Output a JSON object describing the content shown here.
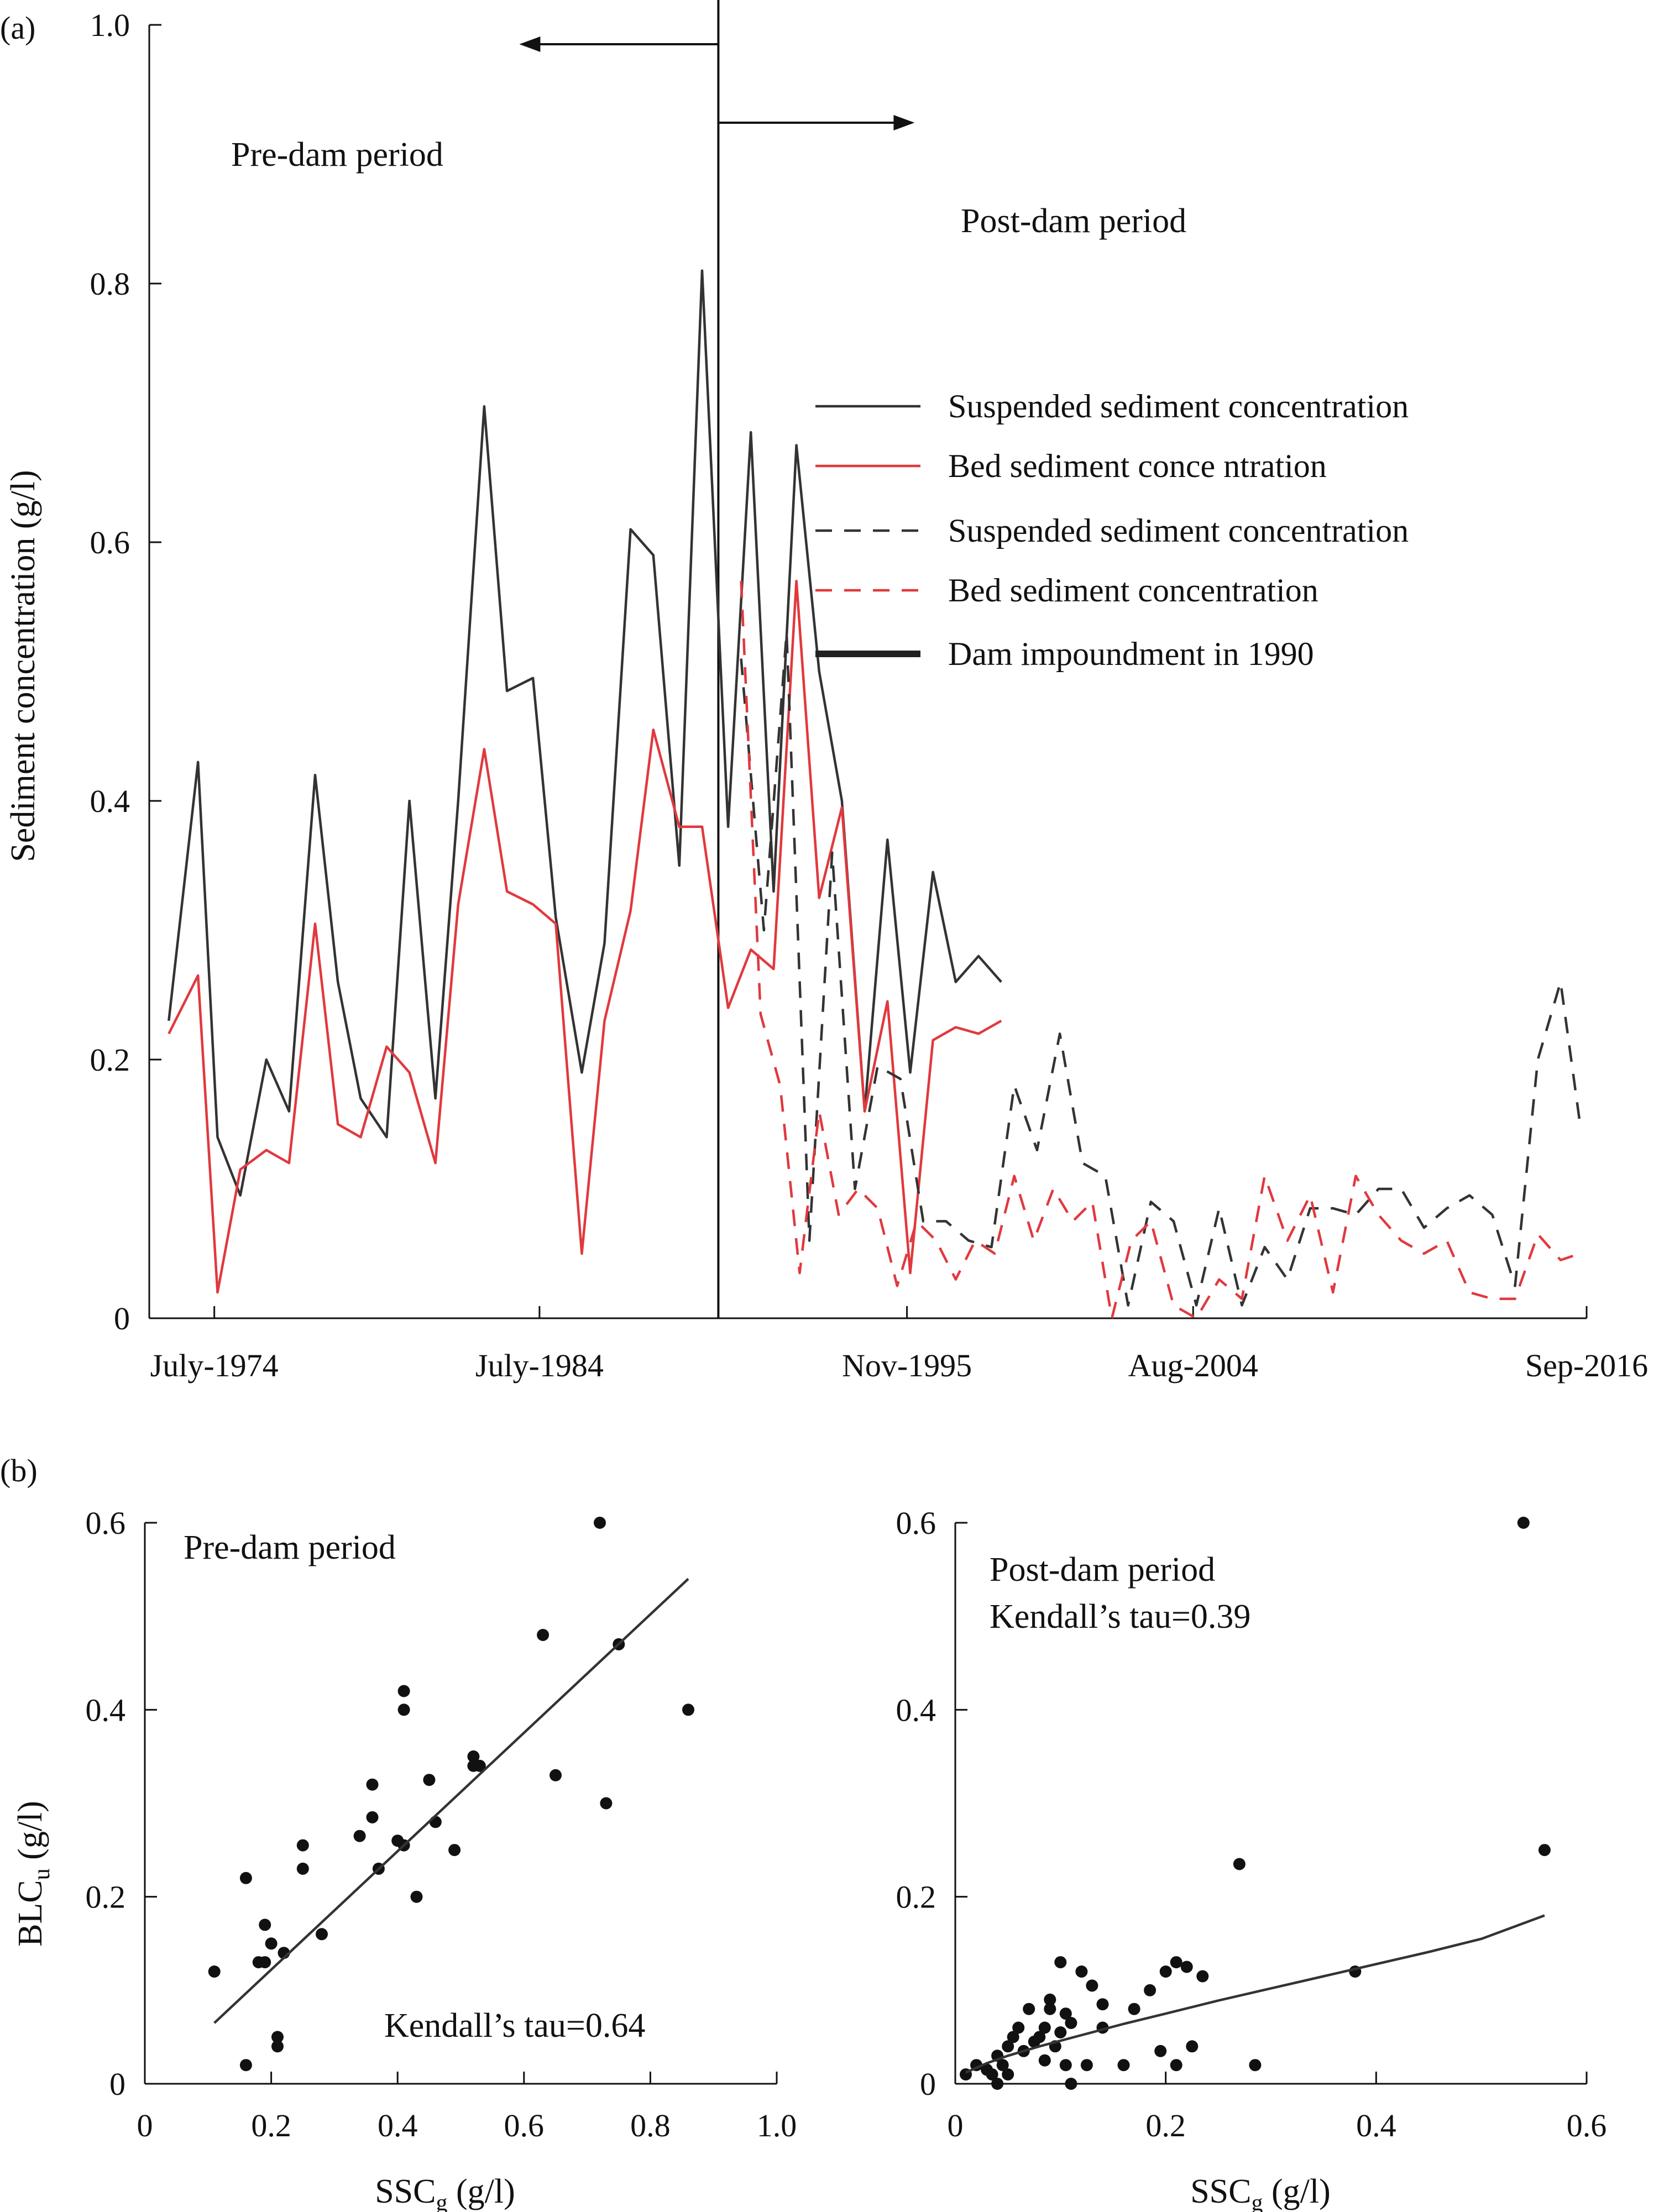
{
  "panel_labels": {
    "a": "(a)",
    "b": "(b)"
  },
  "chart_data": [
    {
      "type": "line",
      "panel": "(a)",
      "ylabel": "Sediment concentration (g/l)",
      "xlabel": "",
      "ylim": [
        0,
        1.0
      ],
      "yticks": [
        "0",
        "0.2",
        "0.4",
        "0.6",
        "0.8",
        "1.0"
      ],
      "xticks": [
        "July-1974",
        "July-1984",
        "Nov-1995",
        "Aug-2004",
        "Sep-2016"
      ],
      "x_unit": "decimal year",
      "xlim": [
        1972.5,
        2016.7
      ],
      "xtick_years": [
        1974.5,
        1984.5,
        1995.8,
        2004.6,
        2016.7
      ],
      "dam_year": 1990,
      "annotations": {
        "pre": "Pre-dam period",
        "post": "Post-dam period"
      },
      "legend_position": "right",
      "legend": [
        {
          "label": "Suspended sediment concentration",
          "style": "solid",
          "color": "#333333"
        },
        {
          "label": "Bed sediment conce ntration",
          "style": "solid",
          "color": "#e0393e"
        },
        {
          "label": "Suspended sediment concentration",
          "style": "dashed",
          "color": "#333333"
        },
        {
          "label": "Bed sediment concentration",
          "style": "dashed",
          "color": "#e0393e"
        },
        {
          "label": "Dam impoundment in 1990",
          "style": "thick",
          "color": "#222222"
        }
      ],
      "series": [
        {
          "style": "solid",
          "color": "#333333",
          "x": [
            1973.1,
            1974.0,
            1974.6,
            1975.3,
            1976.1,
            1976.8,
            1977.6,
            1978.3,
            1979.0,
            1979.8,
            1980.5,
            1981.3,
            1982.0,
            1982.8,
            1983.5,
            1984.3,
            1985.0,
            1985.8,
            1986.5,
            1987.3,
            1988.0,
            1988.8,
            1989.5,
            1990.3,
            1991.0,
            1991.7,
            1992.4,
            1993.1,
            1993.8,
            1994.5,
            1995.2,
            1995.9,
            1996.6,
            1997.3,
            1998.0,
            1998.7
          ],
          "y": [
            0.23,
            0.43,
            0.14,
            0.095,
            0.2,
            0.16,
            0.42,
            0.26,
            0.17,
            0.14,
            0.4,
            0.17,
            0.4,
            0.705,
            0.485,
            0.495,
            0.31,
            0.19,
            0.29,
            0.61,
            0.59,
            0.35,
            0.81,
            0.38,
            0.685,
            0.33,
            0.675,
            0.5,
            0.4,
            0.16,
            0.37,
            0.19,
            0.345,
            0.26,
            0.28,
            0.26
          ]
        },
        {
          "style": "solid",
          "color": "#e0393e",
          "x": [
            1973.1,
            1974.0,
            1974.6,
            1975.3,
            1976.1,
            1976.8,
            1977.6,
            1978.3,
            1979.0,
            1979.8,
            1980.5,
            1981.3,
            1982.0,
            1982.8,
            1983.5,
            1984.3,
            1985.0,
            1985.8,
            1986.5,
            1987.3,
            1988.0,
            1988.8,
            1989.5,
            1990.3,
            1991.0,
            1991.7,
            1992.4,
            1993.1,
            1993.8,
            1994.5,
            1995.2,
            1995.9,
            1996.6,
            1997.3,
            1998.0,
            1998.7
          ],
          "y": [
            0.22,
            0.265,
            0.02,
            0.115,
            0.13,
            0.12,
            0.305,
            0.15,
            0.14,
            0.21,
            0.19,
            0.12,
            0.32,
            0.44,
            0.33,
            0.32,
            0.305,
            0.05,
            0.23,
            0.315,
            0.455,
            0.38,
            0.38,
            0.24,
            0.285,
            0.27,
            0.57,
            0.325,
            0.395,
            0.16,
            0.245,
            0.035,
            0.215,
            0.225,
            0.22,
            0.23
          ]
        },
        {
          "style": "dashed",
          "color": "#333333",
          "x": [
            1990.7,
            1991.4,
            1992.1,
            1992.8,
            1993.5,
            1994.2,
            1994.9,
            1995.6,
            1996.3,
            1997.0,
            1997.7,
            1998.4,
            1999.1,
            1999.8,
            2000.5,
            2001.2,
            2001.9,
            2002.6,
            2003.3,
            2004.0,
            2004.7,
            2005.4,
            2006.1,
            2006.8,
            2007.5,
            2008.2,
            2008.9,
            2009.6,
            2010.3,
            2011.0,
            2011.7,
            2012.4,
            2013.1,
            2013.8,
            2014.5,
            2015.2,
            2015.9,
            2016.5
          ],
          "y": [
            0.51,
            0.3,
            0.53,
            0.06,
            0.36,
            0.1,
            0.195,
            0.185,
            0.075,
            0.075,
            0.06,
            0.055,
            0.18,
            0.13,
            0.22,
            0.12,
            0.11,
            0.01,
            0.09,
            0.075,
            0.01,
            0.085,
            0.01,
            0.055,
            0.03,
            0.085,
            0.085,
            0.08,
            0.1,
            0.1,
            0.07,
            0.085,
            0.095,
            0.08,
            0.025,
            0.2,
            0.26,
            0.15
          ]
        },
        {
          "style": "dashed",
          "color": "#e0393e",
          "x": [
            1990.7,
            1991.3,
            1991.9,
            1992.5,
            1993.1,
            1993.7,
            1994.3,
            1994.9,
            1995.5,
            1996.1,
            1996.7,
            1997.3,
            1997.9,
            1998.5,
            1999.1,
            1999.7,
            2000.3,
            2000.9,
            2001.5,
            2002.1,
            2002.7,
            2003.3,
            2004.0,
            2004.7,
            2005.4,
            2006.1,
            2006.8,
            2007.5,
            2008.2,
            2008.9,
            2009.6,
            2010.3,
            2011.0,
            2011.7,
            2012.4,
            2013.1,
            2013.8,
            2014.5,
            2015.2,
            2015.9,
            2016.5
          ],
          "y": [
            0.57,
            0.235,
            0.18,
            0.035,
            0.16,
            0.08,
            0.1,
            0.085,
            0.025,
            0.075,
            0.06,
            0.03,
            0.06,
            0.05,
            0.11,
            0.06,
            0.1,
            0.075,
            0.09,
            0.0,
            0.06,
            0.075,
            0.01,
            0.0,
            0.03,
            0.015,
            0.11,
            0.06,
            0.095,
            0.02,
            0.11,
            0.08,
            0.06,
            0.05,
            0.06,
            0.02,
            0.015,
            0.015,
            0.065,
            0.045,
            0.05
          ]
        }
      ]
    },
    {
      "type": "scatter",
      "panel": "(b)",
      "ylabel": "BLC",
      "ylabel_sub": "u",
      "ylabel_unit": " (g/l)",
      "xlabel": "SSC",
      "xlabel_sub": "g",
      "xlabel_unit": " (g/l)",
      "xlim": [
        0,
        1.0
      ],
      "ylim": [
        0,
        0.6
      ],
      "xticks": [
        "0",
        "0.2",
        "0.4",
        "0.6",
        "0.8",
        "1.0"
      ],
      "yticks": [
        "0",
        "0.2",
        "0.4",
        "0.6"
      ],
      "annotation": "Pre-dam period",
      "stat": "Kendall’s tau=0.64",
      "fit": {
        "type": "linear",
        "x": [
          0.11,
          0.86
        ],
        "y": [
          0.065,
          0.54
        ]
      },
      "points": [
        [
          0.11,
          0.12
        ],
        [
          0.16,
          0.02
        ],
        [
          0.16,
          0.22
        ],
        [
          0.18,
          0.13
        ],
        [
          0.19,
          0.13
        ],
        [
          0.19,
          0.17
        ],
        [
          0.2,
          0.15
        ],
        [
          0.21,
          0.04
        ],
        [
          0.21,
          0.05
        ],
        [
          0.22,
          0.14
        ],
        [
          0.25,
          0.23
        ],
        [
          0.25,
          0.255
        ],
        [
          0.28,
          0.16
        ],
        [
          0.34,
          0.265
        ],
        [
          0.36,
          0.285
        ],
        [
          0.36,
          0.32
        ],
        [
          0.37,
          0.23
        ],
        [
          0.4,
          0.26
        ],
        [
          0.41,
          0.255
        ],
        [
          0.41,
          0.42
        ],
        [
          0.41,
          0.4
        ],
        [
          0.43,
          0.2
        ],
        [
          0.45,
          0.325
        ],
        [
          0.46,
          0.28
        ],
        [
          0.49,
          0.25
        ],
        [
          0.52,
          0.35
        ],
        [
          0.52,
          0.34
        ],
        [
          0.53,
          0.34
        ],
        [
          0.63,
          0.48
        ],
        [
          0.65,
          0.33
        ],
        [
          0.72,
          0.6
        ],
        [
          0.73,
          0.3
        ],
        [
          0.75,
          0.47
        ],
        [
          0.86,
          0.4
        ]
      ]
    },
    {
      "type": "scatter",
      "panel": "(b)",
      "ylabel": "",
      "xlabel": "SSC",
      "xlabel_sub": "g",
      "xlabel_unit": " (g/l)",
      "xlim": [
        0,
        0.6
      ],
      "ylim": [
        0,
        0.6
      ],
      "xticks": [
        "0",
        "0.2",
        "0.4",
        "0.6"
      ],
      "yticks": [
        "0",
        "0.2",
        "0.4",
        "0.6"
      ],
      "annotation": "Post-dam period",
      "stat": "Kendall’s tau=0.39",
      "fit": {
        "type": "curve",
        "x": [
          0.01,
          0.03,
          0.05,
          0.08,
          0.12,
          0.16,
          0.2,
          0.25,
          0.3,
          0.35,
          0.4,
          0.45,
          0.5,
          0.56
        ],
        "y": [
          0.012,
          0.022,
          0.03,
          0.04,
          0.052,
          0.064,
          0.075,
          0.089,
          0.102,
          0.115,
          0.128,
          0.141,
          0.155,
          0.18
        ]
      },
      "points": [
        [
          0.01,
          0.01
        ],
        [
          0.02,
          0.02
        ],
        [
          0.03,
          0.015
        ],
        [
          0.035,
          0.01
        ],
        [
          0.04,
          0.0
        ],
        [
          0.04,
          0.03
        ],
        [
          0.045,
          0.02
        ],
        [
          0.05,
          0.01
        ],
        [
          0.05,
          0.04
        ],
        [
          0.055,
          0.05
        ],
        [
          0.06,
          0.06
        ],
        [
          0.065,
          0.035
        ],
        [
          0.07,
          0.08
        ],
        [
          0.075,
          0.045
        ],
        [
          0.08,
          0.05
        ],
        [
          0.085,
          0.025
        ],
        [
          0.085,
          0.06
        ],
        [
          0.09,
          0.08
        ],
        [
          0.09,
          0.09
        ],
        [
          0.095,
          0.04
        ],
        [
          0.1,
          0.13
        ],
        [
          0.1,
          0.055
        ],
        [
          0.105,
          0.02
        ],
        [
          0.105,
          0.075
        ],
        [
          0.11,
          0.065
        ],
        [
          0.11,
          0.0
        ],
        [
          0.12,
          0.12
        ],
        [
          0.125,
          0.02
        ],
        [
          0.13,
          0.105
        ],
        [
          0.14,
          0.085
        ],
        [
          0.14,
          0.06
        ],
        [
          0.16,
          0.02
        ],
        [
          0.17,
          0.08
        ],
        [
          0.185,
          0.1
        ],
        [
          0.195,
          0.035
        ],
        [
          0.2,
          0.12
        ],
        [
          0.21,
          0.13
        ],
        [
          0.21,
          0.02
        ],
        [
          0.22,
          0.125
        ],
        [
          0.225,
          0.04
        ],
        [
          0.235,
          0.115
        ],
        [
          0.27,
          0.235
        ],
        [
          0.285,
          0.02
        ],
        [
          0.38,
          0.12
        ],
        [
          0.54,
          0.6
        ],
        [
          0.56,
          0.25
        ]
      ]
    }
  ]
}
